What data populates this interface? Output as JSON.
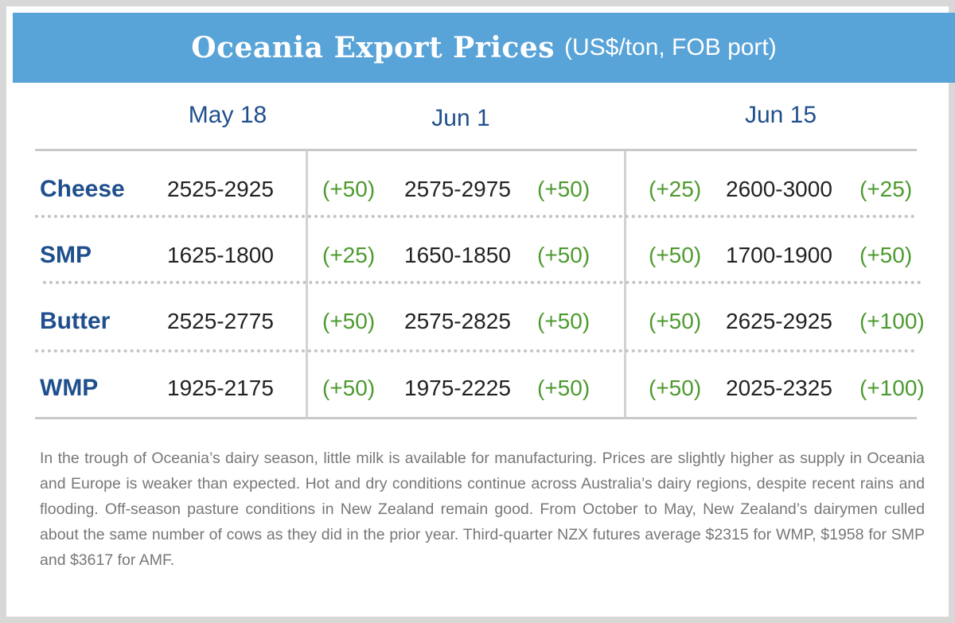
{
  "title": "Oceania Export Prices",
  "subtitle": "(US$/ton, FOB port)",
  "note": "In the trough of Oceania’s dairy season, little milk is available for manufacturing. Prices are slightly higher as supply in Oceania and Europe is weaker than expected. Hot and dry conditions continue across Australia’s dairy regions, despite recent rains and flooding. Off-season pasture conditions in New Zealand remain good. From October to May, New Zealand’s dairymen culled about the same number of cows as they did in the prior year. Third-quarter NZX futures average $2315 for WMP, $1958 for SMP and $3617 for AMF.",
  "colors": {
    "banner": "#58a3d7",
    "product_text": "#1f4f8c",
    "change_text": "#4d9a2f",
    "note_text": "#777777"
  },
  "chart_data": {
    "type": "table",
    "columns": [
      "May 18",
      "Jun 1",
      "Jun 15"
    ],
    "rows": [
      {
        "product": "Cheese",
        "may18": "2525-2925",
        "jun1_change_in": "(+50)",
        "jun1": "2575-2975",
        "jun1_change_out": "(+50)",
        "jun15_change_in": "(+25)",
        "jun15": "2600-3000",
        "jun15_change_out": "(+25)"
      },
      {
        "product": "SMP",
        "may18": "1625-1800",
        "jun1_change_in": "(+25)",
        "jun1": "1650-1850",
        "jun1_change_out": "(+50)",
        "jun15_change_in": "(+50)",
        "jun15": "1700-1900",
        "jun15_change_out": "(+50)"
      },
      {
        "product": "Butter",
        "may18": "2525-2775",
        "jun1_change_in": "(+50)",
        "jun1": "2575-2825",
        "jun1_change_out": "(+50)",
        "jun15_change_in": "(+50)",
        "jun15": "2625-2925",
        "jun15_change_out": "(+100)"
      },
      {
        "product": "WMP",
        "may18": "1925-2175",
        "jun1_change_in": "(+50)",
        "jun1": "1975-2225",
        "jun1_change_out": "(+50)",
        "jun15_change_in": "(+50)",
        "jun15": "2025-2325",
        "jun15_change_out": "(+100)"
      }
    ]
  }
}
